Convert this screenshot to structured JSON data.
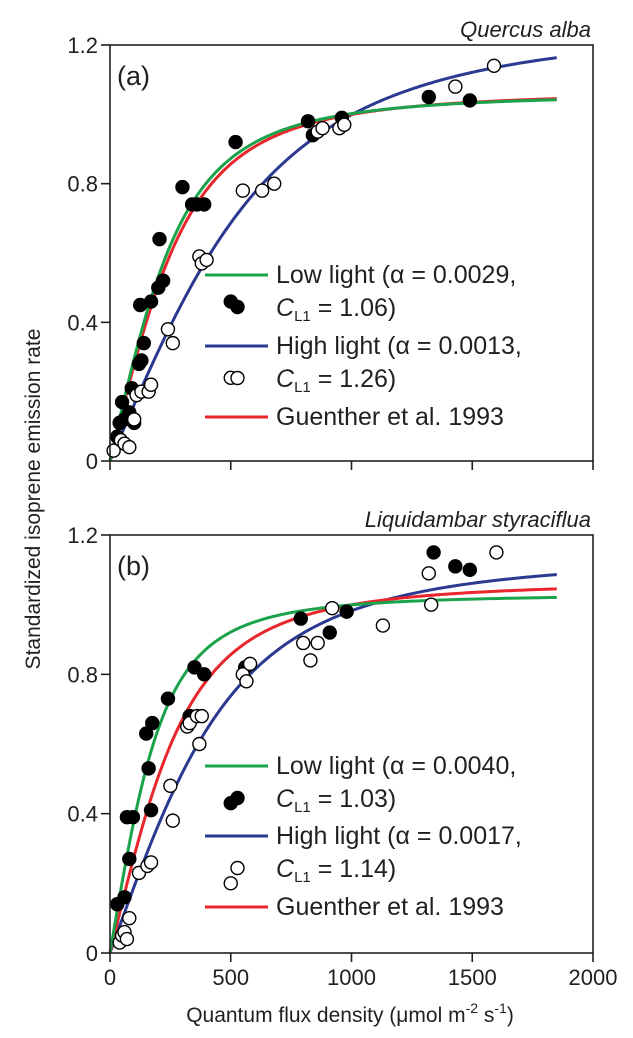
{
  "figure": {
    "ylabel": "Standardized isoprene emission rate",
    "xlabel_prefix": "Quantum flux density (",
    "xlabel_mu": "μ",
    "xlabel_mol_m": "mol m",
    "xlabel_exp1": "-2",
    "xlabel_s": " s",
    "xlabel_exp2": "-1",
    "xlabel_suffix": ")"
  },
  "colors": {
    "low_light": "#1aa34a",
    "high_light": "#2b3990",
    "guenther": "#e8262b",
    "axis": "#231f20"
  },
  "chart_data": [
    {
      "type": "scatter",
      "panel": "(a)",
      "title": "Quercus alba",
      "xlim": [
        0,
        2000
      ],
      "ylim": [
        0,
        1.2
      ],
      "x_ticks": [
        0,
        500,
        1000,
        1500,
        2000
      ],
      "x_tick_labels_visible": false,
      "y_ticks": [
        0,
        0.4,
        0.8,
        1.2
      ],
      "y_tick_labels": [
        "0",
        "0.4",
        "0.8",
        "1.2"
      ],
      "legend_placement": "center-right",
      "legend": [
        {
          "line1": "Low light (α = 0.0029,",
          "line2_c": "C",
          "line2_sub": "L1",
          "line2_rest": " = 1.06)",
          "marker": "filled",
          "line_color": "#1aa34a"
        },
        {
          "line1": "High light (α = 0.0013,",
          "line2_c": "C",
          "line2_sub": "L1",
          "line2_rest": " = 1.26)",
          "marker": "open",
          "line_color": "#2b3990"
        },
        {
          "line1": "Guenther et al. 1993",
          "marker": "none",
          "line_color": "#e8262b"
        }
      ],
      "curves": {
        "low_light": {
          "alpha": 0.0029,
          "CL1": 1.06
        },
        "high_light": {
          "alpha": 0.0013,
          "CL1": 1.26
        },
        "guenther": {
          "alpha": 0.0027,
          "CL1": 1.066
        }
      },
      "series": [
        {
          "name": "Low light",
          "marker": "filled",
          "points": [
            [
              30,
              0.07
            ],
            [
              40,
              0.11
            ],
            [
              50,
              0.17
            ],
            [
              60,
              0.12
            ],
            [
              80,
              0.14
            ],
            [
              90,
              0.21
            ],
            [
              100,
              0.11
            ],
            [
              110,
              0.2
            ],
            [
              120,
              0.28
            ],
            [
              125,
              0.45
            ],
            [
              130,
              0.29
            ],
            [
              140,
              0.34
            ],
            [
              170,
              0.46
            ],
            [
              200,
              0.5
            ],
            [
              205,
              0.64
            ],
            [
              220,
              0.52
            ],
            [
              300,
              0.79
            ],
            [
              340,
              0.74
            ],
            [
              360,
              0.74
            ],
            [
              390,
              0.74
            ],
            [
              500,
              0.46
            ],
            [
              520,
              0.92
            ],
            [
              820,
              0.98
            ],
            [
              840,
              0.94
            ],
            [
              960,
              0.99
            ],
            [
              1320,
              1.05
            ],
            [
              1490,
              1.04
            ]
          ]
        },
        {
          "name": "High light",
          "marker": "open",
          "points": [
            [
              15,
              0.03
            ],
            [
              45,
              0.06
            ],
            [
              60,
              0.05
            ],
            [
              80,
              0.04
            ],
            [
              100,
              0.12
            ],
            [
              110,
              0.19
            ],
            [
              130,
              0.2
            ],
            [
              160,
              0.2
            ],
            [
              170,
              0.22
            ],
            [
              240,
              0.38
            ],
            [
              260,
              0.34
            ],
            [
              370,
              0.59
            ],
            [
              380,
              0.57
            ],
            [
              400,
              0.58
            ],
            [
              500,
              0.24
            ],
            [
              550,
              0.78
            ],
            [
              630,
              0.78
            ],
            [
              680,
              0.8
            ],
            [
              860,
              0.95
            ],
            [
              880,
              0.96
            ],
            [
              950,
              0.96
            ],
            [
              970,
              0.97
            ],
            [
              1430,
              1.08
            ],
            [
              1590,
              1.14
            ]
          ]
        }
      ]
    },
    {
      "type": "scatter",
      "panel": "(b)",
      "title": "Liquidambar styraciflua",
      "xlim": [
        0,
        2000
      ],
      "ylim": [
        0,
        1.2
      ],
      "x_ticks": [
        0,
        500,
        1000,
        1500,
        2000
      ],
      "x_tick_labels": [
        "0",
        "500",
        "1000",
        "1500",
        "2000"
      ],
      "x_tick_labels_visible": true,
      "y_ticks": [
        0,
        0.4,
        0.8,
        1.2
      ],
      "y_tick_labels": [
        "0",
        "0.4",
        "0.8",
        "1.2"
      ],
      "legend_placement": "center-right",
      "legend": [
        {
          "line1": "Low light (α = 0.0040,",
          "line2_c": "C",
          "line2_sub": "L1",
          "line2_rest": " = 1.03)",
          "marker": "filled",
          "line_color": "#1aa34a"
        },
        {
          "line1": "High light (α = 0.0017,",
          "line2_c": "C",
          "line2_sub": "L1",
          "line2_rest": " = 1.14)",
          "marker": "open",
          "line_color": "#2b3990"
        },
        {
          "line1": "Guenther et al. 1993",
          "marker": "none",
          "line_color": "#e8262b"
        }
      ],
      "curves": {
        "low_light": {
          "alpha": 0.004,
          "CL1": 1.03
        },
        "high_light": {
          "alpha": 0.0017,
          "CL1": 1.14
        },
        "guenther": {
          "alpha": 0.0027,
          "CL1": 1.066
        }
      },
      "series": [
        {
          "name": "Low light",
          "marker": "filled",
          "points": [
            [
              30,
              0.14
            ],
            [
              60,
              0.16
            ],
            [
              70,
              0.39
            ],
            [
              80,
              0.27
            ],
            [
              95,
              0.39
            ],
            [
              150,
              0.63
            ],
            [
              160,
              0.53
            ],
            [
              170,
              0.41
            ],
            [
              175,
              0.66
            ],
            [
              240,
              0.73
            ],
            [
              330,
              0.68
            ],
            [
              350,
              0.82
            ],
            [
              390,
              0.8
            ],
            [
              500,
              0.43
            ],
            [
              560,
              0.82
            ],
            [
              790,
              0.96
            ],
            [
              910,
              0.92
            ],
            [
              980,
              0.98
            ],
            [
              1340,
              1.15
            ],
            [
              1430,
              1.11
            ],
            [
              1490,
              1.1
            ]
          ]
        },
        {
          "name": "High light",
          "marker": "open",
          "points": [
            [
              40,
              0.03
            ],
            [
              50,
              0.05
            ],
            [
              60,
              0.06
            ],
            [
              70,
              0.04
            ],
            [
              80,
              0.1
            ],
            [
              120,
              0.23
            ],
            [
              155,
              0.25
            ],
            [
              170,
              0.26
            ],
            [
              250,
              0.48
            ],
            [
              260,
              0.38
            ],
            [
              320,
              0.65
            ],
            [
              330,
              0.66
            ],
            [
              360,
              0.68
            ],
            [
              370,
              0.6
            ],
            [
              380,
              0.68
            ],
            [
              500,
              0.2
            ],
            [
              550,
              0.8
            ],
            [
              565,
              0.78
            ],
            [
              580,
              0.83
            ],
            [
              800,
              0.89
            ],
            [
              830,
              0.84
            ],
            [
              860,
              0.89
            ],
            [
              920,
              0.99
            ],
            [
              1130,
              0.94
            ],
            [
              1320,
              1.09
            ],
            [
              1330,
              1.0
            ],
            [
              1600,
              1.15
            ]
          ]
        }
      ]
    }
  ]
}
